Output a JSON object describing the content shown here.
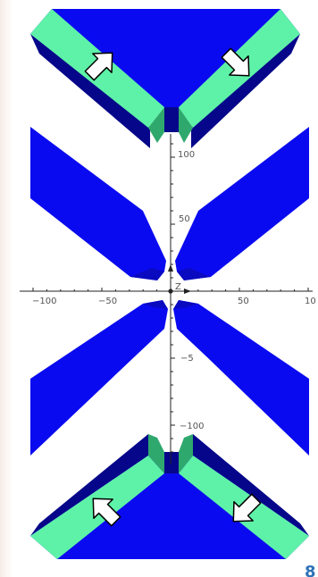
{
  "colors": {
    "background": "#ffffff",
    "blue_face": "#0a0af0",
    "blue_dark": "#0a0ac0",
    "blue_darker": "#06068a",
    "green_band": "#5ef2a8",
    "green_dark": "#2fa86e",
    "axis": "#222222",
    "arrow_fill": "#ffffff",
    "arrow_stroke": "#000000",
    "corner_mark": "#2f72b8"
  },
  "axes": {
    "x_ticks": [
      "−100",
      "−50",
      "50",
      "10"
    ],
    "y_ticks": [
      "100",
      "50",
      "−5",
      "−100"
    ],
    "origin_label": "Z"
  },
  "arrows": [
    {
      "name": "arrow-top-left",
      "direction": "up-right"
    },
    {
      "name": "arrow-top-right",
      "direction": "down-right"
    },
    {
      "name": "arrow-bottom-left",
      "direction": "up-left"
    },
    {
      "name": "arrow-bottom-right",
      "direction": "down-left"
    }
  ],
  "corner_mark": "8"
}
